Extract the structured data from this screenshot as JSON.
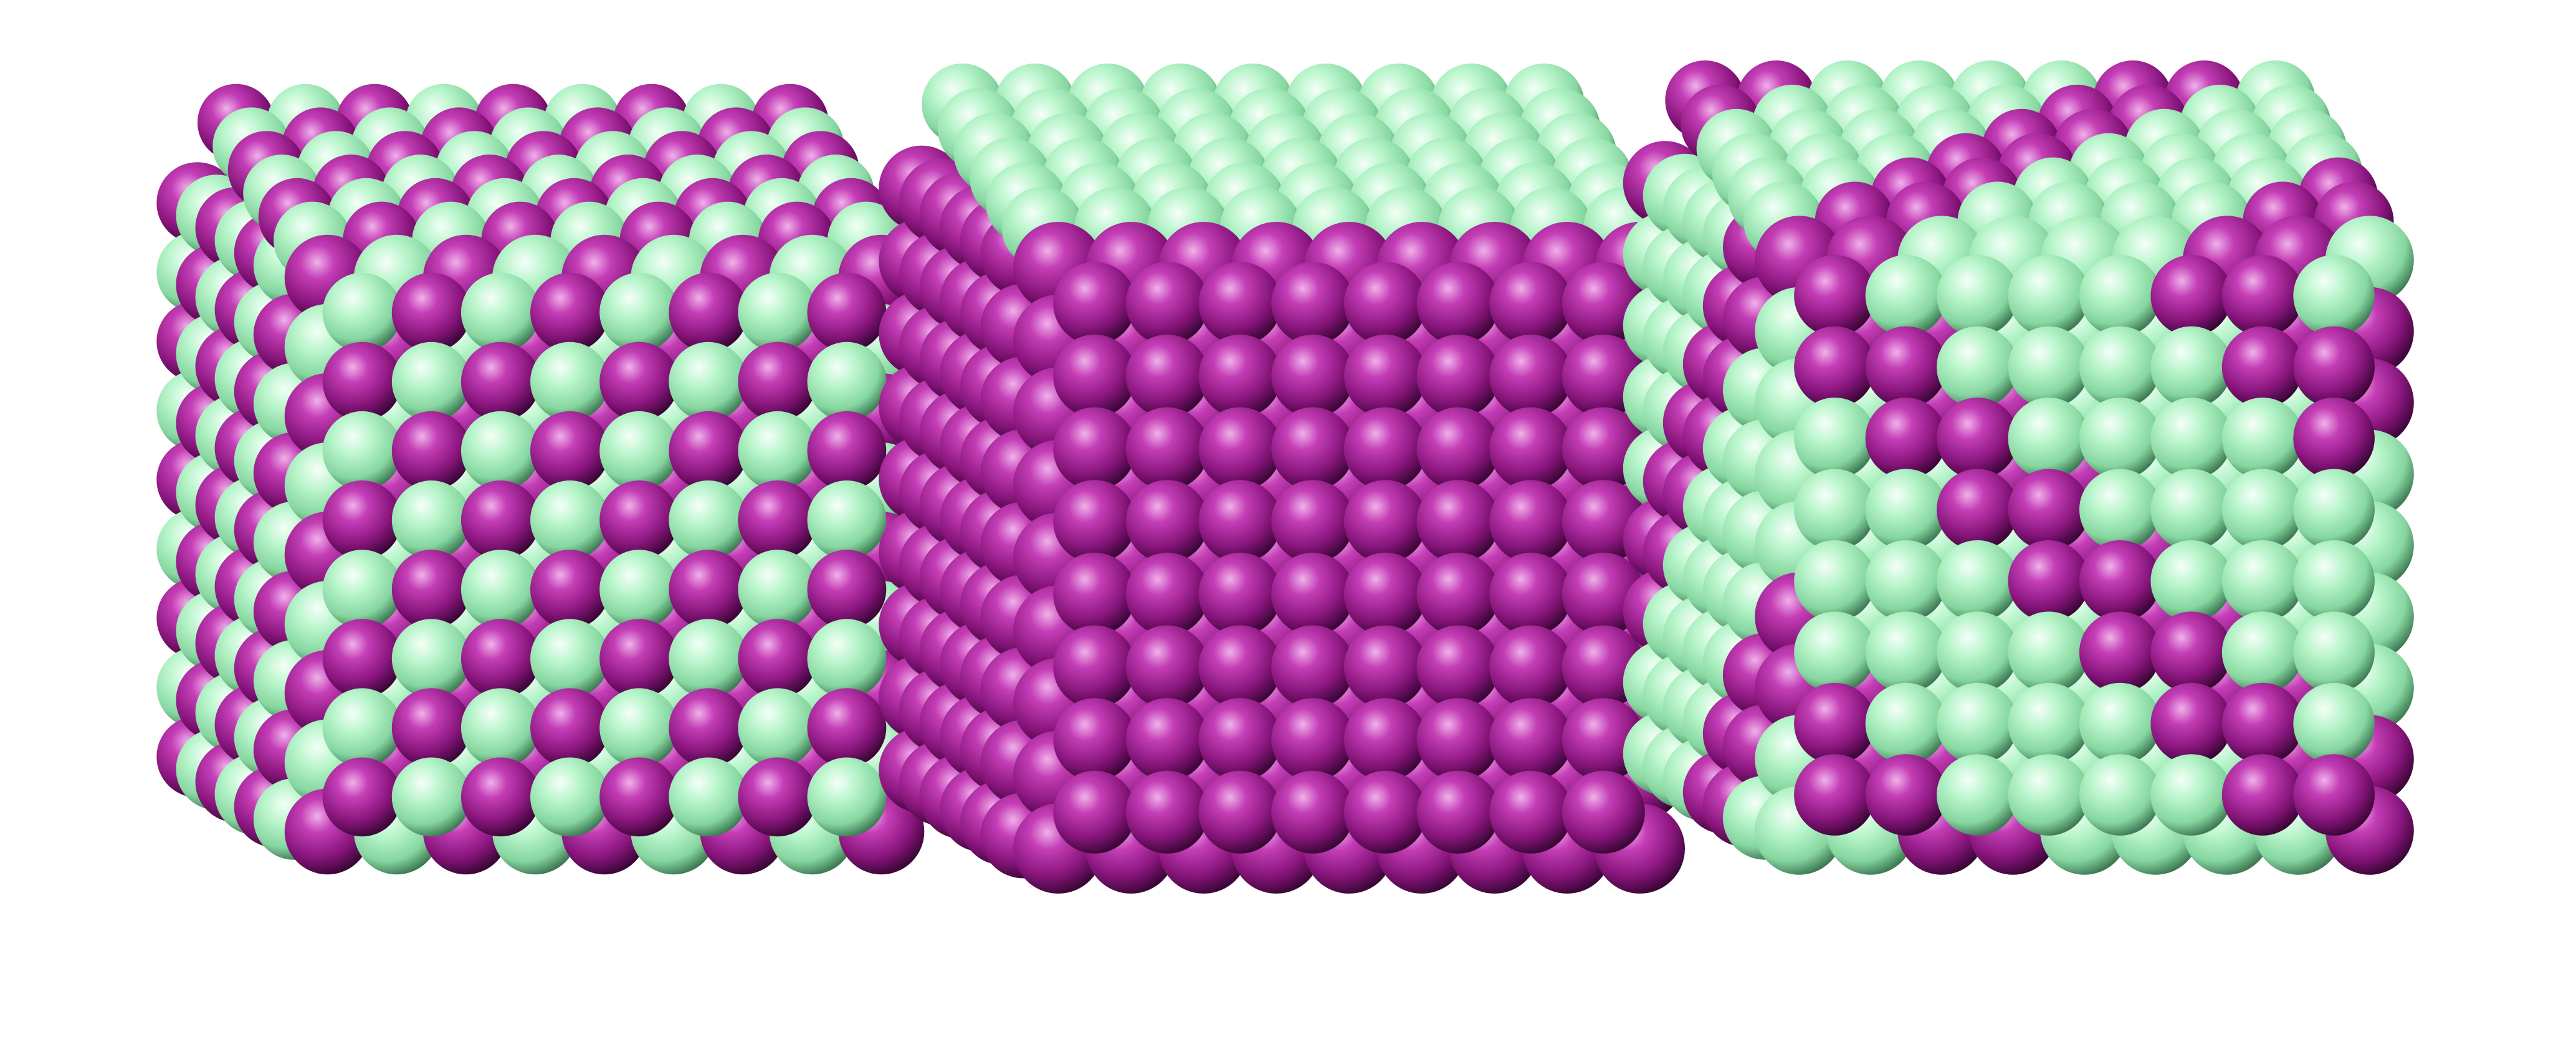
{
  "scene": {
    "background": "#ffffff",
    "atom_colors": {
      "purple": {
        "base": "#9b2290",
        "highlight": "#e79be0",
        "shadow": "#3a0636"
      },
      "green": {
        "base": "#a8f2bf",
        "highlight": "#f2fff6",
        "shadow": "#3f7b55"
      }
    },
    "clusters": [
      {
        "name": "checkerboard-cluster",
        "pattern": "checker",
        "dominant": "mixed"
      },
      {
        "name": "core-shell-cluster",
        "pattern": "solid",
        "dominant": "purple"
      },
      {
        "name": "segregated-cluster",
        "pattern": "stripes",
        "dominant": "green"
      }
    ]
  }
}
